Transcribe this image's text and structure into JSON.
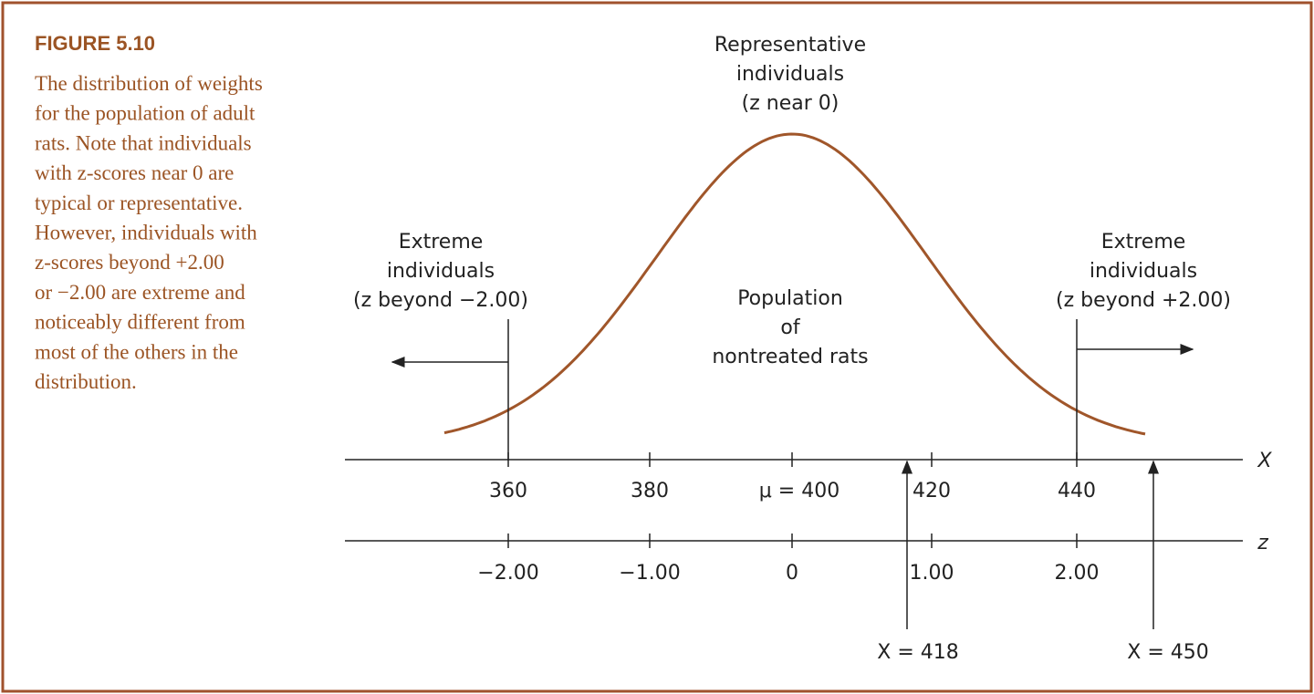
{
  "figure": {
    "label": "FIGURE 5.10",
    "caption_lines": [
      "The distribution of weights",
      "for the population of adult",
      "rats. Note that individuals",
      "with z-scores near 0 are",
      "typical or representative.",
      "However, individuals with",
      "z-scores beyond +2.00",
      "or −2.00 are extreme and",
      "noticeably different from",
      "most of the others in the",
      "distribution."
    ]
  },
  "annotations": {
    "center_top": [
      "Representative",
      "individuals",
      "(z near 0)"
    ],
    "left": [
      "Extreme",
      "individuals",
      "(z beyond −2.00)"
    ],
    "right": [
      "Extreme",
      "individuals",
      "(z beyond +2.00)"
    ],
    "middle": [
      "Population",
      "of",
      "nontreated rats"
    ],
    "pointer_1": "X = 418",
    "pointer_2": "X = 450"
  },
  "x_axis": {
    "name": "X",
    "tick_labels": [
      "360",
      "380",
      "μ = 400",
      "420",
      "440"
    ]
  },
  "z_axis": {
    "name": "z",
    "tick_labels": [
      "−2.00",
      "−1.00",
      "0",
      "1.00",
      "2.00"
    ]
  }
}
